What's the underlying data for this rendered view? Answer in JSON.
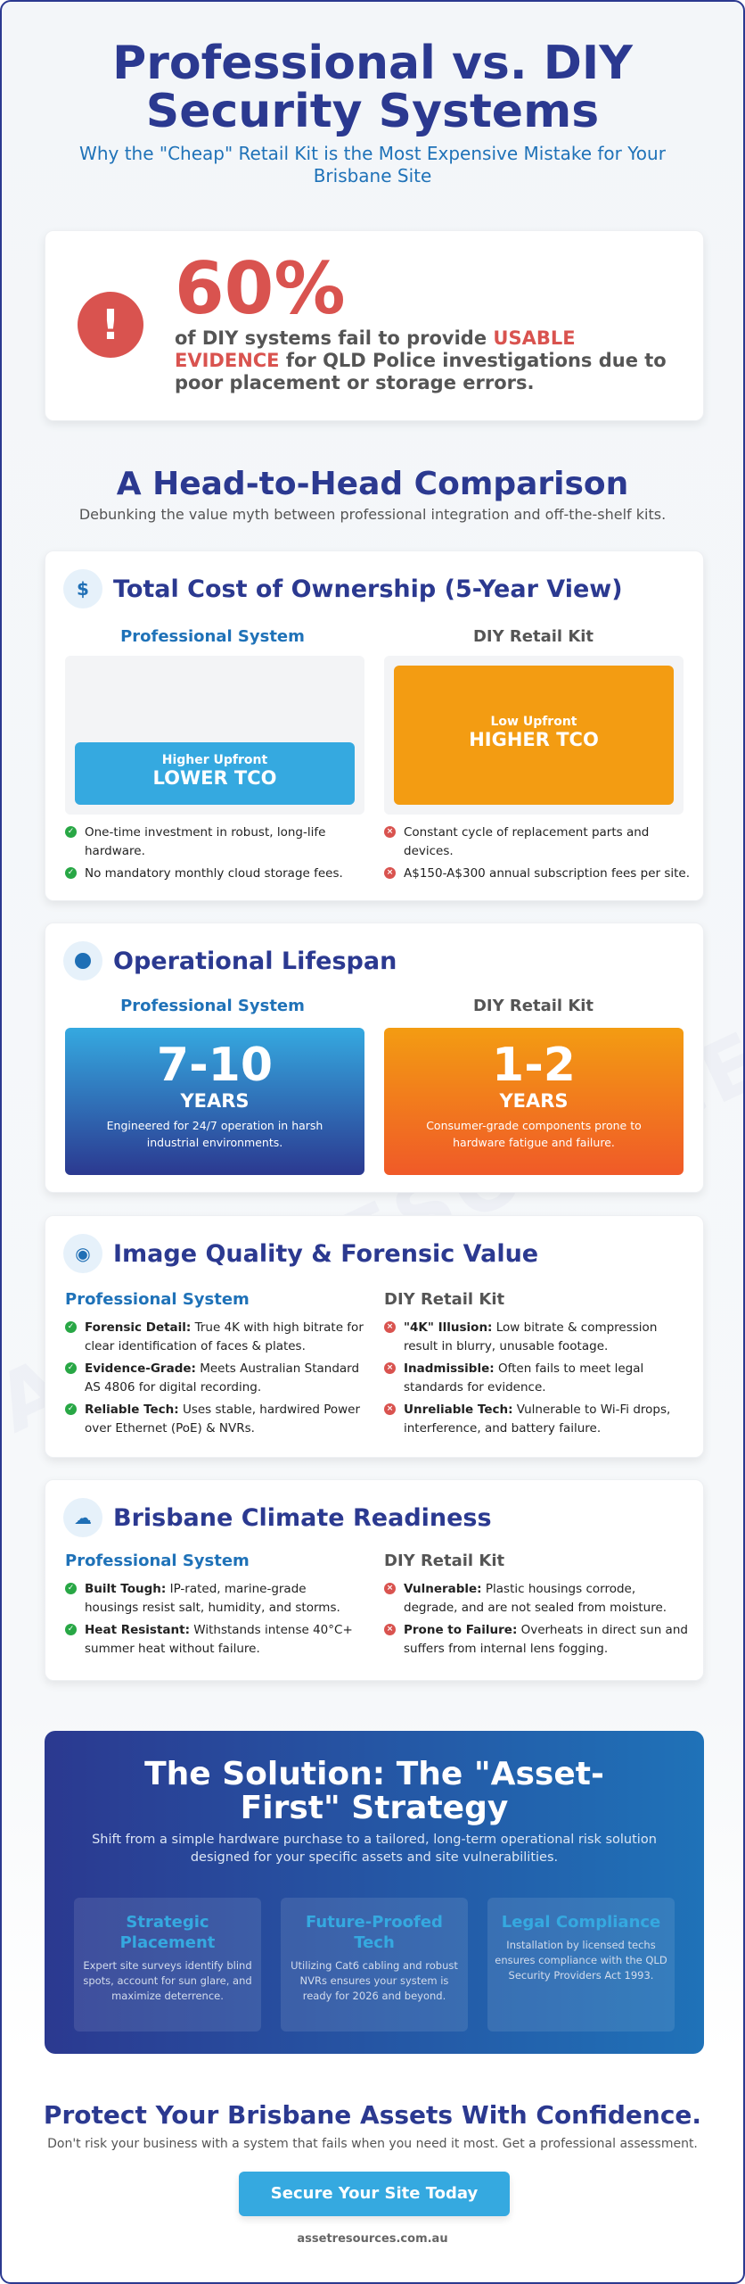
{
  "watermark": "ASSETRESOURCES.COM",
  "header": {
    "title": "Professional vs. DIY Security Systems",
    "subtitle": "Why the \"Cheap\" Retail Kit is the Most Expensive Mistake for Your Brisbane Site"
  },
  "stat": {
    "value": "60%",
    "text_before": "of DIY systems fail to provide ",
    "highlight": "USABLE EVIDENCE",
    "text_after": " for QLD Police investigations due to poor placement or storage errors.",
    "icon": "exclamation-icon"
  },
  "comparison": {
    "title": "A Head-to-Head Comparison",
    "subtitle": "Debunking the value myth between professional integration and off-the-shelf kits."
  },
  "labels": {
    "pro": "Professional System",
    "diy": "DIY Retail Kit"
  },
  "colors": {
    "navy": "#2b3990",
    "blue": "#1f72b8",
    "sky": "#35a9e0",
    "orange": "#f39c12",
    "red": "#d9534f",
    "green": "#28a745"
  },
  "tco": {
    "title": "Total Cost of Ownership (5-Year View)",
    "icon": "dollar-icon",
    "pro_bar": {
      "small": "Higher Upfront",
      "big": "LOWER TCO"
    },
    "diy_bar": {
      "small": "Low Upfront",
      "big": "HIGHER TCO"
    },
    "pro_items": [
      "One-time investment in robust, long-life hardware.",
      "No mandatory monthly cloud storage fees."
    ],
    "diy_items": [
      "Constant cycle of replacement parts and devices.",
      "A$150-A$300 annual subscription fees per site."
    ]
  },
  "lifespan": {
    "title": "Operational Lifespan",
    "icon": "clock-icon",
    "pro": {
      "value": "7-10",
      "unit": "YEARS",
      "desc": "Engineered for 24/7 operation in harsh industrial environments."
    },
    "diy": {
      "value": "1-2",
      "unit": "YEARS",
      "desc": "Consumer-grade components prone to hardware fatigue and failure."
    }
  },
  "image": {
    "title": "Image Quality & Forensic Value",
    "icon": "eye-icon",
    "pro": [
      {
        "b": "Forensic Detail:",
        "t": " True 4K with high bitrate for clear identification of faces & plates."
      },
      {
        "b": "Evidence-Grade:",
        "t": " Meets Australian Standard AS 4806 for digital recording."
      },
      {
        "b": "Reliable Tech:",
        "t": " Uses stable, hardwired Power over Ethernet (PoE) & NVRs."
      }
    ],
    "diy": [
      {
        "b": "\"4K\" Illusion:",
        "t": " Low bitrate & compression result in blurry, unusable footage."
      },
      {
        "b": "Inadmissible:",
        "t": " Often fails to meet legal standards for evidence."
      },
      {
        "b": "Unreliable Tech:",
        "t": " Vulnerable to Wi-Fi drops, interference, and battery failure."
      }
    ]
  },
  "climate": {
    "title": "Brisbane Climate Readiness",
    "icon": "cloud-icon",
    "pro": [
      {
        "b": "Built Tough:",
        "t": " IP-rated, marine-grade housings resist salt, humidity, and storms."
      },
      {
        "b": "Heat Resistant:",
        "t": " Withstands intense 40°C+ summer heat without failure."
      }
    ],
    "diy": [
      {
        "b": "Vulnerable:",
        "t": " Plastic housings corrode, degrade, and are not sealed from moisture."
      },
      {
        "b": "Prone to Failure:",
        "t": " Overheats in direct sun and suffers from internal lens fogging."
      }
    ]
  },
  "solution": {
    "title": "The Solution: The \"Asset-First\" Strategy",
    "subtitle": "Shift from a simple hardware purchase to a tailored, long-term operational risk solution designed for your specific assets and site vulnerabilities.",
    "pillars": [
      {
        "title": "Strategic Placement",
        "desc": "Expert site surveys identify blind spots, account for sun glare, and maximize deterrence."
      },
      {
        "title": "Future-Proofed Tech",
        "desc": "Utilizing Cat6 cabling and robust NVRs ensures your system is ready for 2026 and beyond."
      },
      {
        "title": "Legal Compliance",
        "desc": "Installation by licensed techs ensures compliance with the QLD Security Providers Act 1993."
      }
    ]
  },
  "cta": {
    "title": "Protect Your Brisbane Assets With Confidence.",
    "subtitle": "Don't risk your business with a system that fails when you need it most. Get a professional assessment.",
    "button": "Secure Your Site Today",
    "url": "assetresources.com.au"
  }
}
